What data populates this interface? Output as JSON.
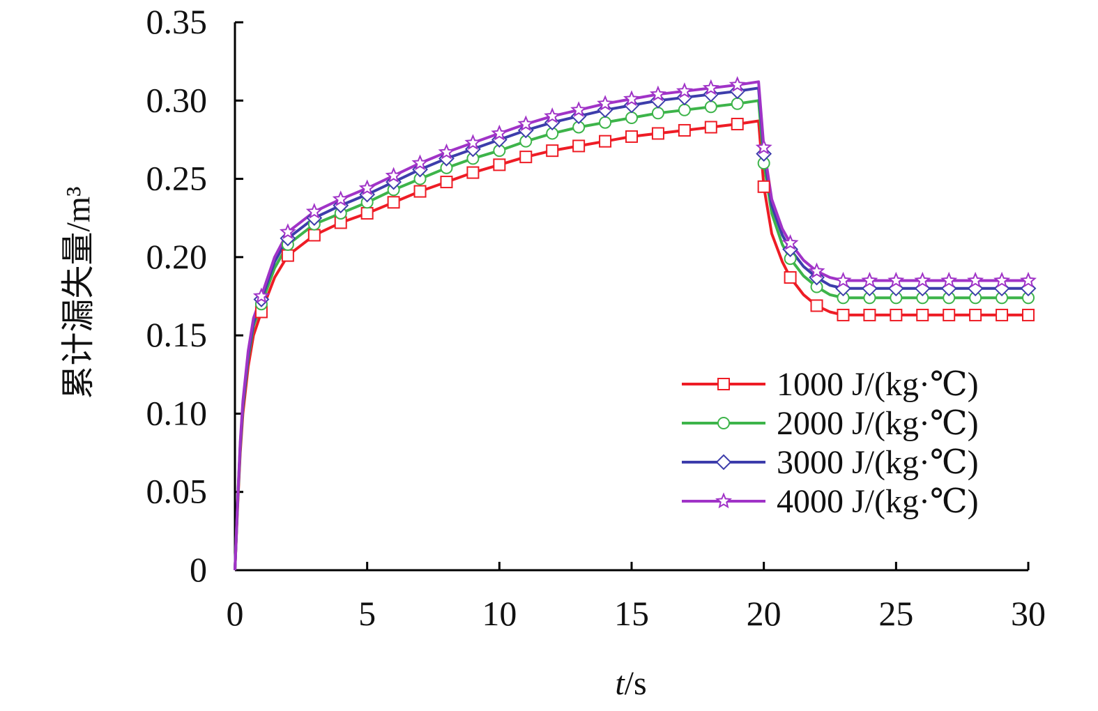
{
  "chart_data": {
    "type": "line",
    "title": "",
    "xlabel": "t/s",
    "ylabel": "累计漏失量/m³",
    "xlabel_italic_part": "t",
    "xlabel_rest": "/s",
    "xlim": [
      0,
      30
    ],
    "ylim": [
      0,
      0.35
    ],
    "x_ticks": [
      0,
      5,
      10,
      15,
      20,
      25,
      30
    ],
    "x_tick_labels": [
      "0",
      "5",
      "10",
      "15",
      "20",
      "25",
      "30"
    ],
    "y_ticks": [
      0,
      0.05,
      0.1,
      0.15,
      0.2,
      0.25,
      0.3,
      0.35
    ],
    "y_tick_labels": [
      "0",
      "0.05",
      "0.10",
      "0.15",
      "0.20",
      "0.25",
      "0.30",
      "0.35"
    ],
    "grid": false,
    "legend_placement": "lower-right",
    "x": [
      0,
      0.1,
      0.2,
      0.3,
      0.5,
      0.7,
      1,
      1.5,
      2,
      3,
      4,
      5,
      6,
      7,
      8,
      9,
      10,
      11,
      12,
      13,
      14,
      15,
      16,
      17,
      18,
      19,
      19.8,
      20,
      20.3,
      20.7,
      21,
      21.5,
      22,
      22.5,
      23,
      24,
      25,
      26,
      27,
      28,
      29,
      30
    ],
    "marker_x": [
      1,
      2,
      3,
      4,
      5,
      6,
      7,
      8,
      9,
      10,
      11,
      12,
      13,
      14,
      15,
      16,
      17,
      18,
      19,
      20,
      21,
      22,
      23,
      24,
      25,
      26,
      27,
      28,
      29,
      30
    ],
    "series": [
      {
        "name": "1000 J/(kg·℃)",
        "color": "#ee1c25",
        "marker": "square",
        "values": [
          0,
          0.04,
          0.075,
          0.1,
          0.13,
          0.15,
          0.165,
          0.187,
          0.201,
          0.214,
          0.222,
          0.228,
          0.235,
          0.242,
          0.248,
          0.254,
          0.259,
          0.264,
          0.268,
          0.271,
          0.274,
          0.277,
          0.279,
          0.281,
          0.283,
          0.285,
          0.287,
          0.245,
          0.215,
          0.197,
          0.187,
          0.176,
          0.169,
          0.165,
          0.163,
          0.163,
          0.163,
          0.163,
          0.163,
          0.163,
          0.163,
          0.163
        ]
      },
      {
        "name": "2000 J/(kg·℃)",
        "color": "#3db44a",
        "marker": "circle",
        "values": [
          0,
          0.042,
          0.078,
          0.104,
          0.135,
          0.156,
          0.17,
          0.193,
          0.208,
          0.221,
          0.228,
          0.235,
          0.243,
          0.25,
          0.257,
          0.263,
          0.268,
          0.274,
          0.279,
          0.283,
          0.286,
          0.289,
          0.292,
          0.294,
          0.296,
          0.298,
          0.3,
          0.26,
          0.228,
          0.208,
          0.199,
          0.188,
          0.181,
          0.176,
          0.174,
          0.174,
          0.174,
          0.174,
          0.174,
          0.174,
          0.174,
          0.174
        ]
      },
      {
        "name": "3000 J/(kg·℃)",
        "color": "#3d3dab",
        "marker": "diamond",
        "values": [
          0,
          0.043,
          0.08,
          0.106,
          0.137,
          0.158,
          0.173,
          0.197,
          0.212,
          0.225,
          0.233,
          0.24,
          0.248,
          0.256,
          0.263,
          0.269,
          0.275,
          0.281,
          0.286,
          0.29,
          0.294,
          0.297,
          0.3,
          0.302,
          0.304,
          0.306,
          0.308,
          0.266,
          0.233,
          0.214,
          0.205,
          0.194,
          0.187,
          0.182,
          0.18,
          0.18,
          0.18,
          0.18,
          0.18,
          0.18,
          0.18,
          0.18
        ]
      },
      {
        "name": "4000 J/(kg·℃)",
        "color": "#a033c7",
        "marker": "star",
        "values": [
          0,
          0.044,
          0.082,
          0.108,
          0.14,
          0.161,
          0.175,
          0.2,
          0.216,
          0.229,
          0.237,
          0.244,
          0.252,
          0.26,
          0.267,
          0.273,
          0.279,
          0.285,
          0.29,
          0.294,
          0.298,
          0.301,
          0.304,
          0.306,
          0.308,
          0.31,
          0.312,
          0.27,
          0.237,
          0.218,
          0.209,
          0.198,
          0.191,
          0.187,
          0.185,
          0.185,
          0.185,
          0.185,
          0.185,
          0.185,
          0.185,
          0.185
        ]
      }
    ]
  }
}
